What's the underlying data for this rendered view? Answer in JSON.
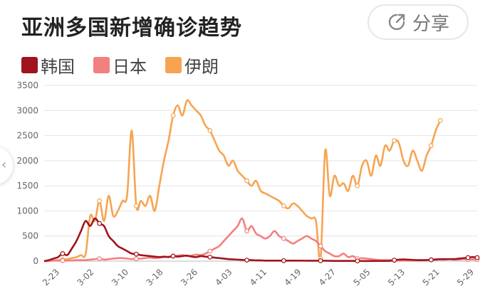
{
  "title": "亚洲多国新增确诊趋势",
  "share": {
    "label": "分享",
    "icon": "share-icon"
  },
  "chart_data": {
    "type": "line",
    "title": "亚洲多国新增确诊趋势",
    "ylim": [
      0,
      3500
    ],
    "yticks": [
      "0",
      "500",
      "1000",
      "1500",
      "2000",
      "2500",
      "3000",
      "3500"
    ],
    "xticks": [
      "2-23",
      "3-02",
      "3-10",
      "3-18",
      "3-26",
      "4-03",
      "4-11",
      "4-19",
      "4-27",
      "5-05",
      "5-13",
      "5-21",
      "5-29"
    ],
    "grid": true,
    "legend_position": "top-left",
    "x_start": "2-20",
    "series": [
      {
        "name": "韩国",
        "color": "#a0141e",
        "values": [
          0,
          20,
          50,
          80,
          150,
          120,
          250,
          400,
          600,
          800,
          700,
          850,
          750,
          700,
          500,
          400,
          300,
          250,
          200,
          150,
          140,
          120,
          110,
          100,
          90,
          80,
          90,
          80,
          100,
          90,
          100,
          110,
          90,
          80,
          100,
          90,
          80,
          70,
          60,
          50,
          40,
          35,
          30,
          25,
          20,
          20,
          15,
          15,
          10,
          10,
          10,
          10,
          10,
          10,
          10,
          10,
          10,
          8,
          8,
          8,
          8,
          8,
          6,
          5,
          5,
          5,
          4,
          4,
          4,
          3,
          3,
          3,
          3,
          4,
          4,
          5,
          20,
          30,
          35,
          30,
          25,
          20,
          20,
          20,
          25,
          30,
          40,
          40,
          40,
          40,
          50,
          60,
          70,
          80,
          70
        ]
      },
      {
        "name": "日本",
        "color": "#f47f7f",
        "values": [
          0,
          10,
          10,
          10,
          10,
          10,
          15,
          20,
          20,
          20,
          30,
          40,
          50,
          30,
          40,
          50,
          60,
          60,
          50,
          40,
          45,
          50,
          60,
          70,
          60,
          70,
          80,
          90,
          100,
          110,
          120,
          100,
          110,
          130,
          120,
          150,
          200,
          250,
          300,
          400,
          500,
          600,
          700,
          850,
          600,
          700,
          550,
          500,
          450,
          500,
          600,
          500,
          450,
          400,
          350,
          400,
          450,
          500,
          450,
          400,
          300,
          200,
          150,
          100,
          100,
          150,
          80,
          100,
          50,
          60,
          50,
          40,
          30,
          20,
          20,
          20,
          15,
          10,
          10,
          10,
          10,
          10,
          10,
          20,
          30,
          40,
          30,
          30,
          40,
          30,
          30,
          40,
          30,
          35,
          30
        ]
      },
      {
        "name": "伊朗",
        "color": "#f7a452",
        "values": [
          0,
          0,
          10,
          20,
          30,
          40,
          60,
          80,
          120,
          140,
          900,
          800,
          1200,
          800,
          1300,
          900,
          1000,
          1200,
          1300,
          2600,
          1100,
          1200,
          1100,
          1300,
          1000,
          1500,
          2000,
          2400,
          2900,
          3100,
          2900,
          3200,
          3100,
          3000,
          2900,
          2700,
          2600,
          2400,
          2200,
          2100,
          1900,
          2000,
          1800,
          1700,
          1600,
          1500,
          1600,
          1400,
          1350,
          1300,
          1250,
          1200,
          1100,
          1050,
          1150,
          1100,
          1000,
          900,
          850,
          800,
          50,
          2200,
          1300,
          1700,
          1500,
          1550,
          1400,
          1700,
          1500,
          1900,
          2000,
          1700,
          2100,
          1900,
          2300,
          2200,
          2400,
          2350,
          2000,
          1900,
          2200,
          2000,
          1800,
          2100,
          2300,
          2600,
          2800
        ]
      }
    ]
  }
}
